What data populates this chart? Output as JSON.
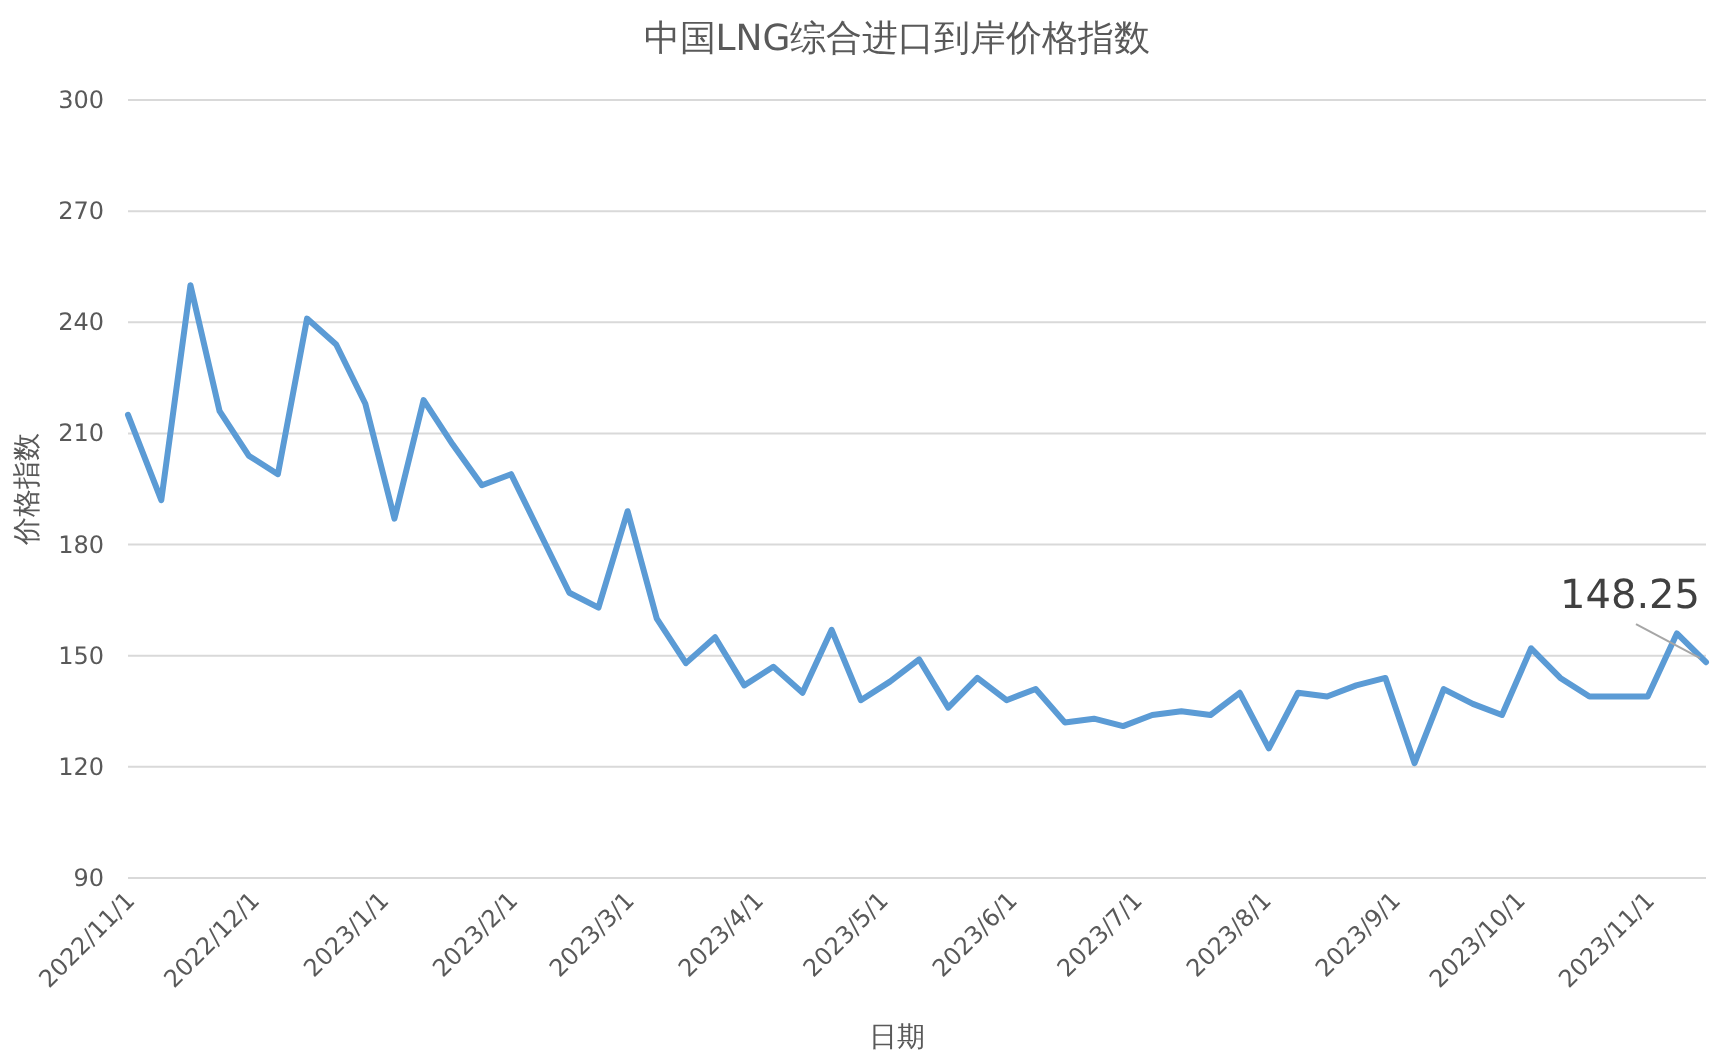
{
  "chart_data": {
    "type": "line",
    "title": "中国LNG综合进口到岸价格指数",
    "xlabel": "日期",
    "ylabel": "价格指数",
    "x": [
      "2022-11-01",
      "2022-11-09",
      "2022-11-16",
      "2022-11-23",
      "2022-11-30",
      "2022-12-07",
      "2022-12-14",
      "2022-12-21",
      "2022-12-28",
      "2023-01-04",
      "2023-01-11",
      "2023-01-18",
      "2023-01-25",
      "2023-02-01",
      "2023-02-08",
      "2023-02-15",
      "2023-02-22",
      "2023-03-01",
      "2023-03-08",
      "2023-03-15",
      "2023-03-22",
      "2023-03-29",
      "2023-04-05",
      "2023-04-12",
      "2023-04-19",
      "2023-04-26",
      "2023-05-03",
      "2023-05-10",
      "2023-05-17",
      "2023-05-24",
      "2023-05-31",
      "2023-06-07",
      "2023-06-14",
      "2023-06-21",
      "2023-06-28",
      "2023-07-05",
      "2023-07-12",
      "2023-07-19",
      "2023-07-26",
      "2023-08-02",
      "2023-08-09",
      "2023-08-16",
      "2023-08-23",
      "2023-08-30",
      "2023-09-06",
      "2023-09-13",
      "2023-09-20",
      "2023-09-27",
      "2023-10-04",
      "2023-10-11",
      "2023-10-18",
      "2023-10-25",
      "2023-11-01",
      "2023-11-08",
      "2023-11-15"
    ],
    "values": [
      215,
      192,
      250,
      216,
      204,
      199,
      241,
      234,
      218,
      187,
      219,
      207,
      196,
      199,
      183,
      167,
      163,
      189,
      160,
      148,
      155,
      142,
      147,
      140,
      157,
      138,
      143,
      149,
      136,
      144,
      138,
      141,
      132,
      133,
      131,
      134,
      135,
      134,
      140,
      125,
      140,
      139,
      142,
      144,
      121,
      141,
      137,
      134,
      152,
      144,
      139,
      139,
      139,
      156,
      148.25
    ],
    "color": "#5b9bd5",
    "xlim": [
      "2022-11-01",
      "2023-11-15"
    ],
    "xticks": [
      {
        "value": "2022-11-01",
        "label": "2022/11/1"
      },
      {
        "value": "2022-12-01",
        "label": "2022/12/1"
      },
      {
        "value": "2023-01-01",
        "label": "2023/1/1"
      },
      {
        "value": "2023-02-01",
        "label": "2023/2/1"
      },
      {
        "value": "2023-03-01",
        "label": "2023/3/1"
      },
      {
        "value": "2023-04-01",
        "label": "2023/4/1"
      },
      {
        "value": "2023-05-01",
        "label": "2023/5/1"
      },
      {
        "value": "2023-06-01",
        "label": "2023/6/1"
      },
      {
        "value": "2023-07-01",
        "label": "2023/7/1"
      },
      {
        "value": "2023-08-01",
        "label": "2023/8/1"
      },
      {
        "value": "2023-09-01",
        "label": "2023/9/1"
      },
      {
        "value": "2023-10-01",
        "label": "2023/10/1"
      },
      {
        "value": "2023-11-01",
        "label": "2023/11/1"
      }
    ],
    "ylim": [
      90,
      300
    ],
    "yticks": [
      90,
      120,
      150,
      180,
      210,
      240,
      270,
      300
    ],
    "grid": "y",
    "annotations": [
      {
        "text": "148.25",
        "x": "2023-11-15",
        "y": 148.25
      }
    ]
  }
}
